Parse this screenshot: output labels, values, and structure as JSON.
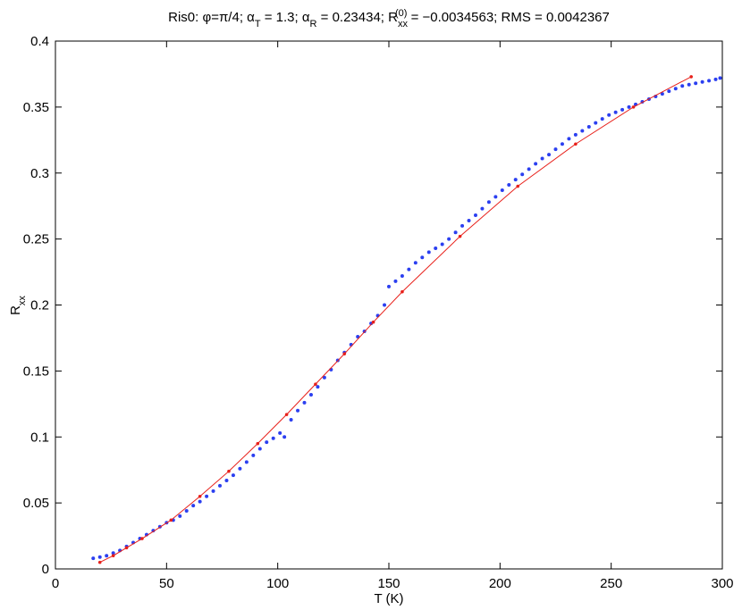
{
  "chart_data": {
    "type": "scatter",
    "title": [
      "Ris0:  φ=π/4; α",
      "T",
      " = 1.3; α",
      "R",
      " = 0.23434; R",
      "xx",
      "(0)",
      " = −0.0034563; RMS = 0.0042367"
    ],
    "xlabel": "T (K)",
    "ylabel": [
      "R",
      "xx"
    ],
    "xlim": [
      0,
      300
    ],
    "ylim": [
      0,
      0.4
    ],
    "xticks": [
      0,
      50,
      100,
      150,
      200,
      250,
      300
    ],
    "yticks": [
      0,
      0.05,
      0.1,
      0.15,
      0.2,
      0.25,
      0.3,
      0.35,
      0.4
    ],
    "series": [
      {
        "type": "scatter",
        "color": "#2b3ff0",
        "x": [
          17,
          20,
          23,
          26,
          29,
          32,
          35,
          38,
          41,
          44,
          47,
          50,
          53,
          56,
          59,
          62,
          65,
          68,
          71,
          74,
          77,
          80,
          83,
          86,
          89,
          92,
          95,
          98,
          101,
          103,
          106,
          109,
          112,
          115,
          118,
          121,
          124,
          127,
          130,
          133,
          136,
          139,
          142,
          145,
          148,
          150,
          153,
          156,
          159,
          162,
          165,
          168,
          171,
          174,
          177,
          180,
          183,
          186,
          189,
          192,
          195,
          198,
          201,
          204,
          207,
          210,
          213,
          216,
          219,
          222,
          225,
          228,
          231,
          234,
          237,
          240,
          243,
          246,
          249,
          252,
          255,
          258,
          261,
          264,
          267,
          270,
          273,
          276,
          279,
          282,
          285,
          288,
          291,
          294,
          297,
          299
        ],
        "values": [
          0.008,
          0.009,
          0.01,
          0.012,
          0.014,
          0.017,
          0.02,
          0.023,
          0.026,
          0.029,
          0.032,
          0.035,
          0.037,
          0.04,
          0.044,
          0.048,
          0.051,
          0.055,
          0.059,
          0.063,
          0.067,
          0.071,
          0.076,
          0.081,
          0.086,
          0.091,
          0.096,
          0.099,
          0.103,
          0.1,
          0.113,
          0.12,
          0.126,
          0.132,
          0.138,
          0.145,
          0.151,
          0.158,
          0.164,
          0.17,
          0.176,
          0.18,
          0.186,
          0.192,
          0.2,
          0.214,
          0.218,
          0.222,
          0.227,
          0.232,
          0.236,
          0.24,
          0.243,
          0.246,
          0.25,
          0.255,
          0.26,
          0.264,
          0.268,
          0.273,
          0.278,
          0.282,
          0.287,
          0.291,
          0.295,
          0.299,
          0.303,
          0.307,
          0.311,
          0.314,
          0.318,
          0.322,
          0.326,
          0.329,
          0.332,
          0.335,
          0.338,
          0.341,
          0.344,
          0.346,
          0.348,
          0.35,
          0.352,
          0.354,
          0.356,
          0.358,
          0.36,
          0.362,
          0.364,
          0.366,
          0.367,
          0.368,
          0.369,
          0.37,
          0.371,
          0.372
        ]
      },
      {
        "type": "line",
        "color": "#e8201a",
        "x": [
          20,
          26,
          32,
          39,
          52,
          65,
          78,
          91,
          104,
          117,
          130,
          143,
          156,
          182,
          208,
          234,
          260,
          286
        ],
        "values": [
          0.005,
          0.01,
          0.016,
          0.023,
          0.037,
          0.055,
          0.074,
          0.095,
          0.117,
          0.14,
          0.163,
          0.187,
          0.21,
          0.252,
          0.29,
          0.322,
          0.35,
          0.373
        ]
      }
    ]
  }
}
